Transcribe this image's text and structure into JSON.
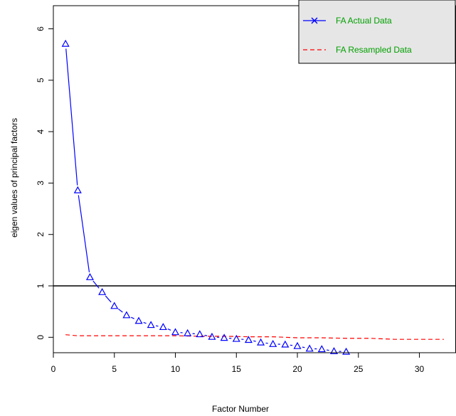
{
  "chart_data": {
    "type": "line",
    "title": "",
    "xlabel": "Factor Number",
    "ylabel": "eigen values of principal factors",
    "xlim": [
      0,
      33
    ],
    "ylim": [
      -0.3,
      6.45
    ],
    "x_ticks": [
      0,
      5,
      10,
      15,
      20,
      25,
      30
    ],
    "y_ticks": [
      0,
      1,
      2,
      3,
      4,
      5,
      6
    ],
    "grid": false,
    "legend_position": "top-right",
    "reference_line": {
      "y": 1,
      "color": "#000000"
    },
    "colors": {
      "actual": "#0000ff",
      "resampled": "#ff0000",
      "legend_text": "#00a000",
      "legend_bg": "#e6e6e6"
    },
    "series": [
      {
        "name": "FA  Actual Data",
        "style": "solid-line-triangle-markers",
        "x": [
          1,
          2,
          3,
          4,
          5,
          6,
          7,
          8,
          9,
          10,
          11,
          12,
          13,
          14,
          15,
          16,
          17,
          18,
          19,
          20,
          21,
          22,
          23,
          24
        ],
        "values": [
          5.71,
          2.86,
          1.17,
          0.88,
          0.61,
          0.43,
          0.32,
          0.24,
          0.2,
          0.1,
          0.08,
          0.06,
          0.01,
          -0.01,
          -0.03,
          -0.05,
          -0.1,
          -0.13,
          -0.14,
          -0.17,
          -0.22,
          -0.23,
          -0.27,
          -0.28
        ]
      },
      {
        "name": "FA  Resampled Data",
        "style": "dashed-line",
        "x": [
          1,
          2,
          4,
          6,
          8,
          10,
          12,
          14,
          16,
          18,
          20,
          22,
          24,
          26,
          28,
          30,
          32
        ],
        "values": [
          0.05,
          0.03,
          0.03,
          0.03,
          0.03,
          0.03,
          0.02,
          0.02,
          0.01,
          0.01,
          -0.01,
          -0.01,
          -0.02,
          -0.02,
          -0.04,
          -0.04,
          -0.04
        ]
      }
    ]
  }
}
